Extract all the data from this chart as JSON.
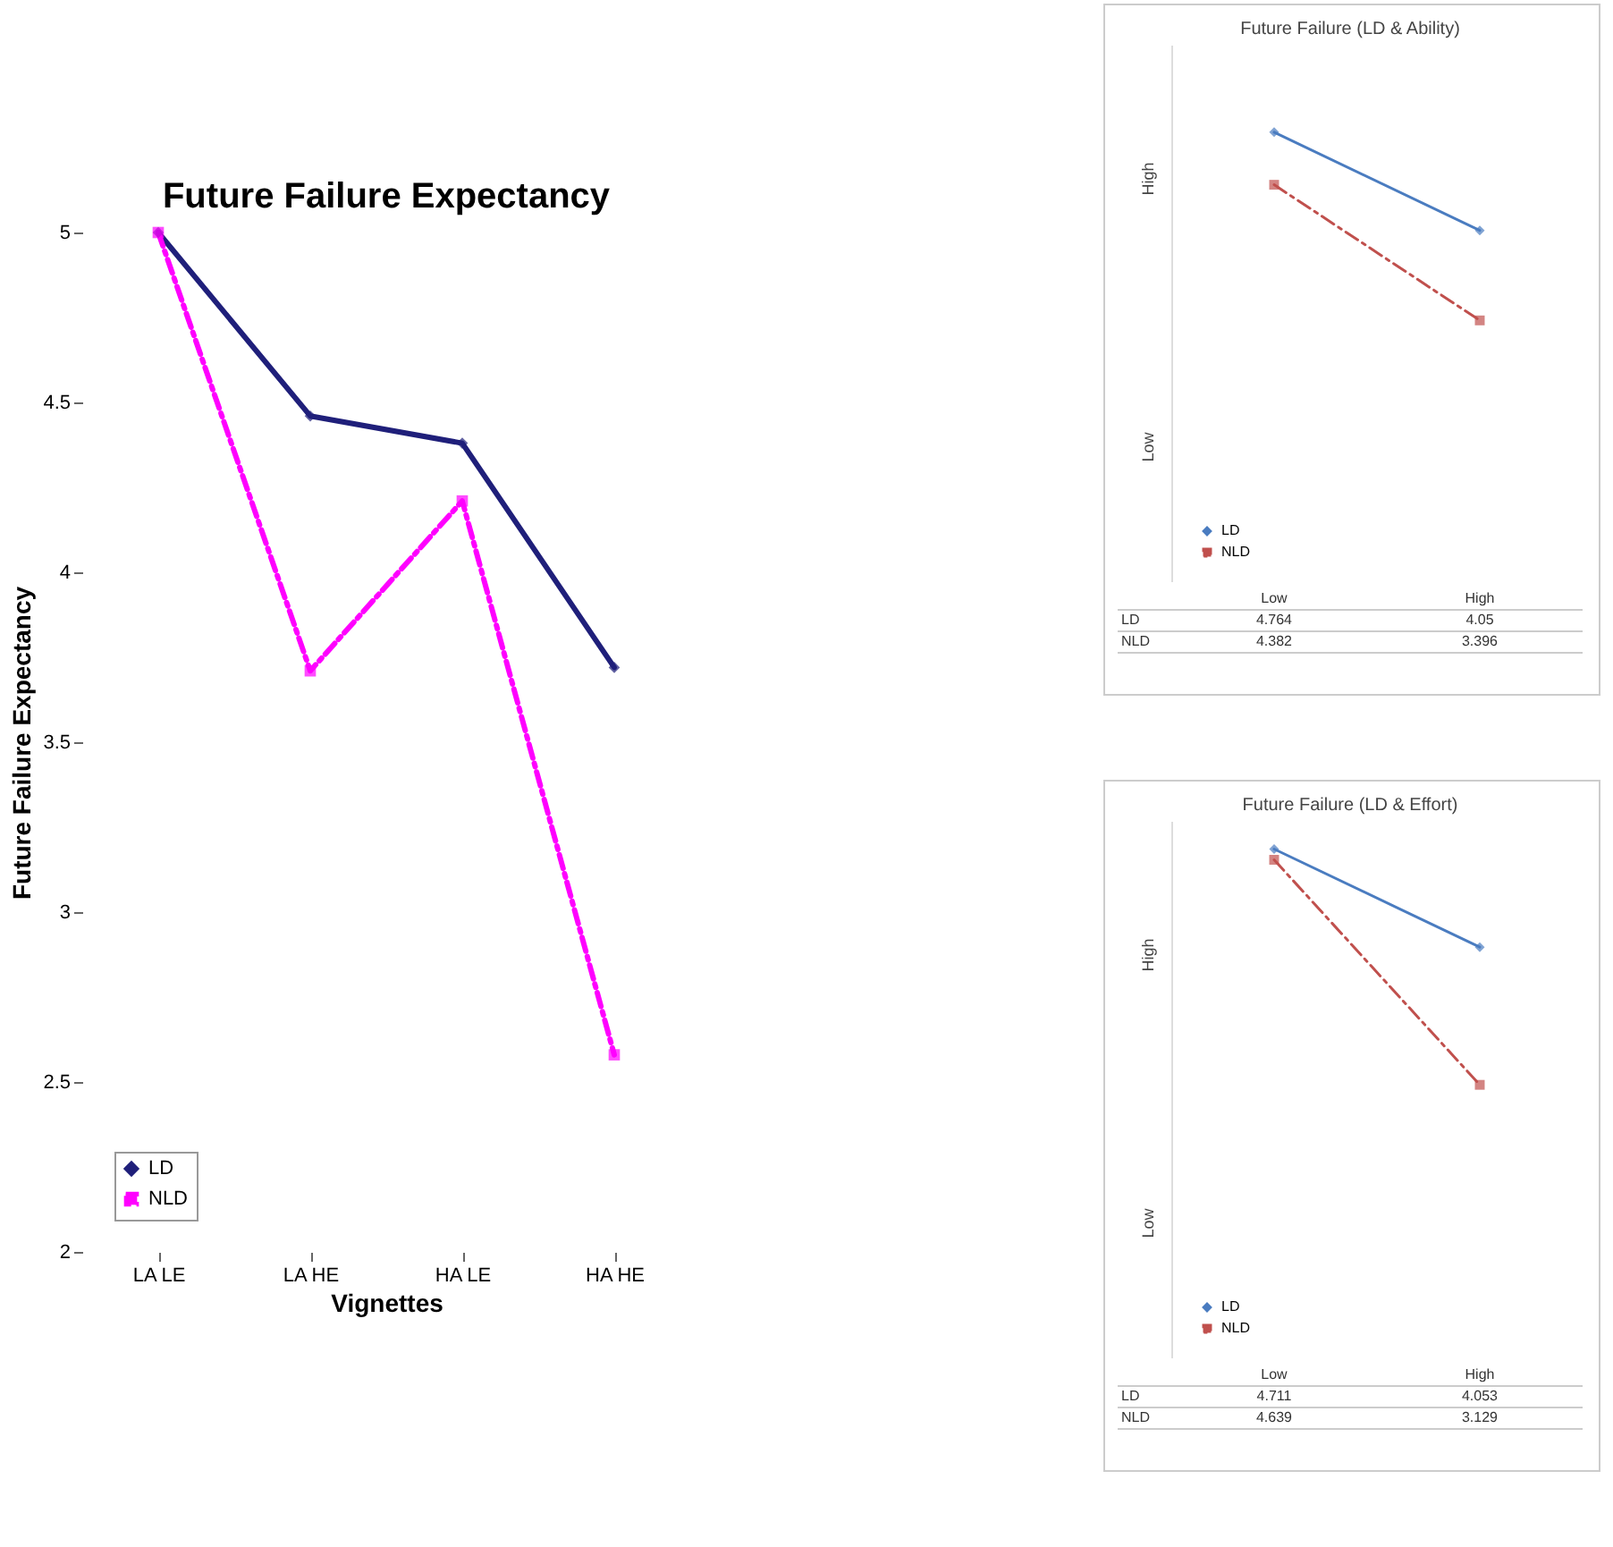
{
  "chart_data": [
    {
      "type": "line",
      "title": "Future Failure Expectancy",
      "xlabel": "Vignettes",
      "ylabel": "Future Failure Expectancy",
      "categories": [
        "LA LE",
        "LA HE",
        "HA LE",
        "HA HE"
      ],
      "ylim": [
        2,
        5
      ],
      "yticks": [
        2,
        2.5,
        3,
        3.5,
        4,
        4.5,
        5
      ],
      "legend": "bottom left",
      "grid": false,
      "series": [
        {
          "name": "LD",
          "color": "#1f1f7a",
          "values": [
            5.0,
            4.46,
            4.38,
            3.72
          ],
          "marker": "diamond",
          "line_style": "solid"
        },
        {
          "name": "NLD",
          "color": "#ff00ff",
          "values": [
            5.0,
            3.71,
            4.21,
            2.58
          ],
          "marker": "square",
          "line_style": "dashed"
        }
      ]
    },
    {
      "type": "line",
      "title": "Future Failure (LD & Ability)",
      "categories": [
        "Low",
        "High"
      ],
      "ylim": [
        1.5,
        5.4
      ],
      "annotations": [
        "High",
        "Low"
      ],
      "legend": "bottom left",
      "grid": false,
      "data_labels": true,
      "series": [
        {
          "name": "LD",
          "color": "#4a7cc0",
          "values": [
            4.764,
            4.05
          ],
          "marker": "diamond",
          "line_style": "solid"
        },
        {
          "name": "NLD",
          "color": "#c0504d",
          "values": [
            4.382,
            3.396
          ],
          "marker": "square",
          "line_style": "dashed"
        }
      ]
    },
    {
      "type": "line",
      "title": "Future Failure (LD & Effort)",
      "categories": [
        "Low",
        "High"
      ],
      "ylim": [
        1.3,
        4.9
      ],
      "annotations": [
        "High",
        "Low"
      ],
      "legend": "bottom left",
      "grid": false,
      "data_labels": true,
      "series": [
        {
          "name": "LD",
          "color": "#4a7cc0",
          "values": [
            4.711,
            4.053
          ],
          "marker": "diamond",
          "line_style": "solid"
        },
        {
          "name": "NLD",
          "color": "#c0504d",
          "values": [
            4.639,
            3.129
          ],
          "marker": "square",
          "line_style": "dashed"
        }
      ]
    }
  ]
}
